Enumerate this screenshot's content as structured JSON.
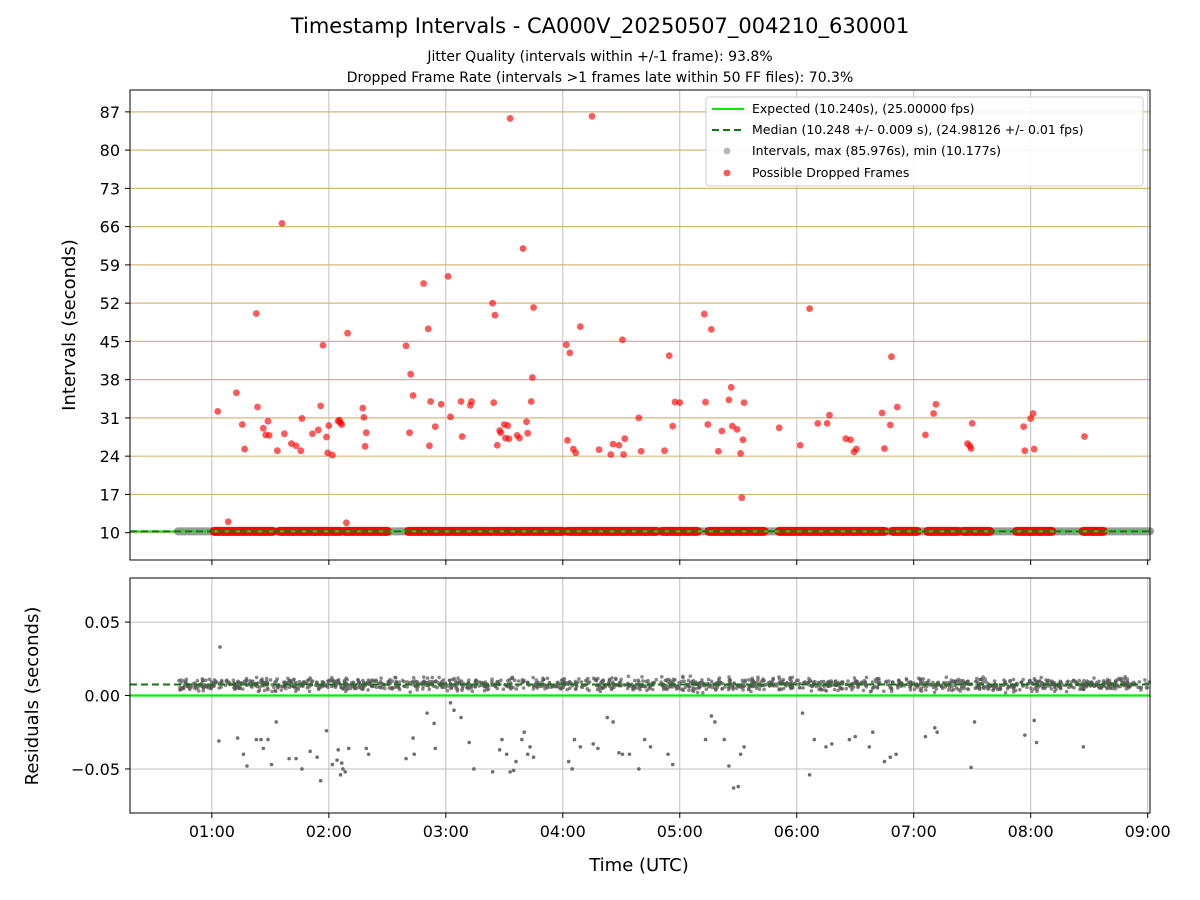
{
  "figure": {
    "title": "Timestamp Intervals - CA000V_20250507_004210_630001",
    "subtitle_jitter": "Jitter Quality (intervals within +/-1 frame): 93.8%",
    "subtitle_dropped": "Dropped Frame Rate (intervals >1 frames late within 50 FF files): 70.3%"
  },
  "colors": {
    "expected_line": "#00ee00",
    "median_line": "#117711",
    "intervals": "#999999",
    "dropped": "#ff0000",
    "residual_points": "#555555",
    "hgrid_top": "#d4b87a",
    "vgrid": "#c0c0c0",
    "frame": "#000000"
  },
  "chart_data": [
    {
      "type": "scatter",
      "xlabel": "",
      "ylabel": "Intervals (seconds)",
      "x_unit": "hours UTC",
      "xlim": [
        0.3,
        9.02
      ],
      "ylim": [
        5.0,
        91.0
      ],
      "yticks": [
        10,
        17,
        24,
        31,
        38,
        45,
        52,
        59,
        66,
        73,
        80,
        87
      ],
      "grid": "on",
      "legend_position": "top-right",
      "legend": [
        {
          "key": "expected",
          "label": "Expected (10.240s), (25.00000 fps)"
        },
        {
          "key": "median",
          "label": "Median (10.248 +/- 0.009 s), (24.98126 +/- 0.01 fps)"
        },
        {
          "key": "intervals",
          "label": "Intervals, max (85.976s), min (10.177s)"
        },
        {
          "key": "dropped",
          "label": "Possible Dropped Frames"
        }
      ],
      "expected_interval": 10.24,
      "median_interval": 10.248,
      "baseline_interval_range": [
        0.71,
        9.02
      ],
      "baseline_dropped_clusters": [
        [
          1.02,
          1.52
        ],
        [
          1.58,
          2.1
        ],
        [
          2.13,
          2.5
        ],
        [
          2.68,
          3.4
        ],
        [
          3.42,
          3.6
        ],
        [
          3.62,
          4.0
        ],
        [
          4.04,
          4.8
        ],
        [
          4.85,
          5.15
        ],
        [
          5.25,
          5.72
        ],
        [
          5.85,
          6.75
        ],
        [
          6.82,
          7.03
        ],
        [
          7.12,
          7.38
        ],
        [
          7.42,
          7.65
        ],
        [
          7.88,
          8.18
        ],
        [
          8.45,
          8.62
        ]
      ],
      "series": [
        {
          "name": "Possible Dropped Frames",
          "points": [
            [
              1.05,
              32.2
            ],
            [
              1.14,
              12.0
            ],
            [
              1.21,
              35.6
            ],
            [
              1.26,
              29.8
            ],
            [
              1.28,
              25.3
            ],
            [
              1.38,
              50.1
            ],
            [
              1.39,
              33.0
            ],
            [
              1.44,
              29.1
            ],
            [
              1.46,
              27.9
            ],
            [
              1.48,
              30.4
            ],
            [
              1.49,
              27.8
            ],
            [
              1.56,
              25.0
            ],
            [
              1.6,
              66.6
            ],
            [
              1.62,
              28.1
            ],
            [
              1.68,
              26.3
            ],
            [
              1.72,
              25.9
            ],
            [
              1.76,
              25.0
            ],
            [
              1.77,
              30.9
            ],
            [
              1.86,
              28.1
            ],
            [
              1.91,
              28.8
            ],
            [
              1.93,
              33.2
            ],
            [
              1.95,
              44.3
            ],
            [
              1.98,
              27.5
            ],
            [
              1.99,
              24.6
            ],
            [
              2.0,
              29.6
            ],
            [
              2.03,
              24.2
            ],
            [
              2.08,
              30.4
            ],
            [
              2.09,
              30.6
            ],
            [
              2.1,
              30.1
            ],
            [
              2.11,
              29.8
            ],
            [
              2.15,
              11.8
            ],
            [
              2.16,
              46.5
            ],
            [
              2.29,
              32.8
            ],
            [
              2.3,
              31.1
            ],
            [
              2.31,
              25.8
            ],
            [
              2.32,
              28.3
            ],
            [
              2.66,
              44.2
            ],
            [
              2.69,
              28.3
            ],
            [
              2.7,
              39.0
            ],
            [
              2.72,
              35.1
            ],
            [
              2.81,
              55.6
            ],
            [
              2.85,
              47.3
            ],
            [
              2.86,
              25.9
            ],
            [
              2.87,
              34.0
            ],
            [
              2.91,
              29.4
            ],
            [
              2.96,
              33.5
            ],
            [
              3.02,
              56.9
            ],
            [
              3.04,
              31.2
            ],
            [
              3.13,
              34.0
            ],
            [
              3.14,
              27.6
            ],
            [
              3.21,
              33.3
            ],
            [
              3.22,
              34.0
            ],
            [
              3.4,
              52.0
            ],
            [
              3.41,
              33.8
            ],
            [
              3.42,
              49.8
            ],
            [
              3.44,
              26.0
            ],
            [
              3.46,
              28.7
            ],
            [
              3.47,
              28.3
            ],
            [
              3.5,
              29.8
            ],
            [
              3.51,
              27.3
            ],
            [
              3.53,
              29.6
            ],
            [
              3.54,
              27.2
            ],
            [
              3.55,
              85.8
            ],
            [
              3.61,
              27.8
            ],
            [
              3.63,
              27.3
            ],
            [
              3.66,
              62.0
            ],
            [
              3.69,
              30.3
            ],
            [
              3.7,
              28.2
            ],
            [
              3.73,
              34.0
            ],
            [
              3.74,
              38.4
            ],
            [
              3.75,
              51.2
            ],
            [
              4.03,
              44.4
            ],
            [
              4.04,
              26.9
            ],
            [
              4.06,
              42.9
            ],
            [
              4.09,
              25.3
            ],
            [
              4.11,
              24.6
            ],
            [
              4.15,
              47.7
            ],
            [
              4.25,
              86.2
            ],
            [
              4.31,
              25.2
            ],
            [
              4.41,
              24.3
            ],
            [
              4.43,
              26.2
            ],
            [
              4.48,
              26.0
            ],
            [
              4.51,
              45.3
            ],
            [
              4.52,
              24.3
            ],
            [
              4.53,
              27.2
            ],
            [
              4.65,
              31.0
            ],
            [
              4.67,
              24.9
            ],
            [
              4.87,
              25.0
            ],
            [
              4.91,
              42.4
            ],
            [
              4.94,
              29.5
            ],
            [
              4.96,
              33.9
            ],
            [
              5.0,
              33.8
            ],
            [
              5.21,
              50.0
            ],
            [
              5.22,
              33.9
            ],
            [
              5.24,
              29.8
            ],
            [
              5.27,
              47.2
            ],
            [
              5.33,
              24.9
            ],
            [
              5.36,
              28.6
            ],
            [
              5.42,
              34.3
            ],
            [
              5.44,
              36.6
            ],
            [
              5.45,
              29.5
            ],
            [
              5.49,
              28.9
            ],
            [
              5.52,
              24.5
            ],
            [
              5.53,
              16.4
            ],
            [
              5.54,
              27.0
            ],
            [
              5.55,
              33.8
            ],
            [
              5.85,
              29.2
            ],
            [
              6.03,
              26.0
            ],
            [
              6.11,
              51.0
            ],
            [
              6.18,
              30.0
            ],
            [
              6.26,
              30.0
            ],
            [
              6.28,
              31.5
            ],
            [
              6.42,
              27.2
            ],
            [
              6.46,
              27.0
            ],
            [
              6.49,
              24.8
            ],
            [
              6.51,
              25.3
            ],
            [
              6.73,
              31.9
            ],
            [
              6.75,
              25.4
            ],
            [
              6.8,
              29.7
            ],
            [
              6.81,
              42.2
            ],
            [
              6.86,
              33.0
            ],
            [
              7.1,
              27.9
            ],
            [
              7.17,
              31.8
            ],
            [
              7.19,
              33.5
            ],
            [
              7.46,
              26.3
            ],
            [
              7.48,
              25.9
            ],
            [
              7.49,
              25.4
            ],
            [
              7.5,
              30.0
            ],
            [
              7.94,
              29.4
            ],
            [
              7.95,
              25.0
            ],
            [
              8.0,
              30.9
            ],
            [
              8.02,
              31.8
            ],
            [
              8.03,
              25.3
            ],
            [
              8.46,
              27.6
            ]
          ]
        }
      ]
    },
    {
      "type": "scatter",
      "xlabel": "Time (UTC)",
      "ylabel": "Residuals (seconds)",
      "xlim": [
        0.3,
        9.02
      ],
      "ylim": [
        -0.08,
        0.08
      ],
      "yticks": [
        -0.05,
        0.0,
        0.05
      ],
      "ytick_labels": [
        "−0.05",
        "0.00",
        "0.05"
      ],
      "xticks": [
        1,
        2,
        3,
        4,
        5,
        6,
        7,
        8,
        9
      ],
      "xtick_labels": [
        "01:00",
        "02:00",
        "03:00",
        "04:00",
        "05:00",
        "06:00",
        "07:00",
        "08:00",
        "09:00"
      ],
      "grid": "on",
      "expected_residual": 0.0,
      "median_residual": 0.0075,
      "dense_band": {
        "x_range": [
          0.71,
          9.02
        ],
        "y_range": [
          0.001,
          0.014
        ],
        "center": 0.0075
      },
      "series": [
        {
          "name": "Residuals",
          "points": [
            [
              0.73,
              0.004
            ],
            [
              1.06,
              -0.031
            ],
            [
              1.07,
              0.033
            ],
            [
              1.22,
              -0.029
            ],
            [
              1.27,
              -0.04
            ],
            [
              1.3,
              -0.048
            ],
            [
              1.38,
              -0.03
            ],
            [
              1.42,
              -0.03
            ],
            [
              1.44,
              -0.036
            ],
            [
              1.48,
              -0.03
            ],
            [
              1.51,
              -0.047
            ],
            [
              1.55,
              -0.018
            ],
            [
              1.66,
              -0.043
            ],
            [
              1.72,
              -0.043
            ],
            [
              1.77,
              -0.05
            ],
            [
              1.84,
              -0.038
            ],
            [
              1.9,
              -0.042
            ],
            [
              1.93,
              -0.058
            ],
            [
              1.98,
              -0.024
            ],
            [
              2.03,
              -0.047
            ],
            [
              2.07,
              -0.044
            ],
            [
              2.08,
              -0.037
            ],
            [
              2.1,
              -0.054
            ],
            [
              2.11,
              -0.046
            ],
            [
              2.12,
              -0.05
            ],
            [
              2.14,
              -0.052
            ],
            [
              2.17,
              -0.036
            ],
            [
              2.32,
              -0.036
            ],
            [
              2.34,
              -0.04
            ],
            [
              2.66,
              -0.043
            ],
            [
              2.72,
              -0.029
            ],
            [
              2.73,
              -0.04
            ],
            [
              2.84,
              -0.012
            ],
            [
              2.9,
              -0.019
            ],
            [
              2.91,
              -0.036
            ],
            [
              3.04,
              -0.005
            ],
            [
              3.07,
              -0.01
            ],
            [
              3.13,
              -0.015
            ],
            [
              3.2,
              -0.032
            ],
            [
              3.24,
              -0.05
            ],
            [
              3.4,
              -0.052
            ],
            [
              3.46,
              -0.037
            ],
            [
              3.48,
              -0.03
            ],
            [
              3.52,
              -0.04
            ],
            [
              3.55,
              -0.052
            ],
            [
              3.58,
              -0.051
            ],
            [
              3.6,
              -0.045
            ],
            [
              3.65,
              -0.03
            ],
            [
              3.67,
              -0.025
            ],
            [
              3.7,
              -0.04
            ],
            [
              3.72,
              -0.035
            ],
            [
              3.75,
              -0.042
            ],
            [
              4.05,
              -0.045
            ],
            [
              4.08,
              -0.05
            ],
            [
              4.1,
              -0.03
            ],
            [
              4.15,
              -0.035
            ],
            [
              4.26,
              -0.033
            ],
            [
              4.3,
              -0.036
            ],
            [
              4.38,
              -0.015
            ],
            [
              4.43,
              -0.018
            ],
            [
              4.48,
              -0.039
            ],
            [
              4.51,
              -0.04
            ],
            [
              4.57,
              -0.04
            ],
            [
              4.65,
              -0.05
            ],
            [
              4.7,
              -0.03
            ],
            [
              4.75,
              -0.035
            ],
            [
              4.9,
              -0.04
            ],
            [
              4.94,
              -0.047
            ],
            [
              5.22,
              -0.03
            ],
            [
              5.27,
              -0.014
            ],
            [
              5.3,
              -0.018
            ],
            [
              5.38,
              -0.03
            ],
            [
              5.42,
              -0.048
            ],
            [
              5.46,
              -0.063
            ],
            [
              5.5,
              -0.062
            ],
            [
              5.52,
              -0.04
            ],
            [
              5.55,
              -0.035
            ],
            [
              6.05,
              -0.012
            ],
            [
              6.11,
              -0.054
            ],
            [
              6.15,
              -0.03
            ],
            [
              6.25,
              -0.035
            ],
            [
              6.3,
              -0.033
            ],
            [
              6.45,
              -0.03
            ],
            [
              6.5,
              -0.028
            ],
            [
              6.62,
              -0.035
            ],
            [
              6.65,
              -0.025
            ],
            [
              6.75,
              -0.045
            ],
            [
              6.8,
              -0.042
            ],
            [
              6.85,
              -0.04
            ],
            [
              7.1,
              -0.028
            ],
            [
              7.18,
              -0.022
            ],
            [
              7.2,
              -0.025
            ],
            [
              7.49,
              -0.049
            ],
            [
              7.52,
              -0.018
            ],
            [
              7.95,
              -0.027
            ],
            [
              8.03,
              -0.017
            ],
            [
              8.05,
              -0.032
            ],
            [
              8.45,
              -0.035
            ]
          ]
        }
      ]
    }
  ]
}
